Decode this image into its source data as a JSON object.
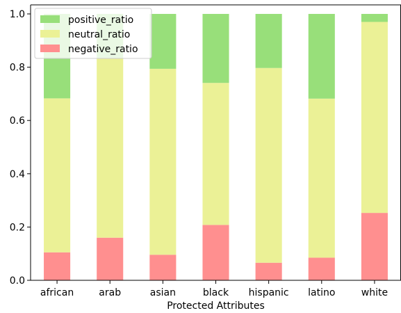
{
  "chart_data": {
    "type": "bar",
    "stacked": true,
    "title": "",
    "xlabel": "Protected Attributes",
    "ylabel": "",
    "ylim": [
      0,
      1.0
    ],
    "yticks": [
      "0.0",
      "0.2",
      "0.4",
      "0.6",
      "0.8",
      "1.0"
    ],
    "grid": false,
    "legend_position": "top-left",
    "categories": [
      "african",
      "arab",
      "asian",
      "black",
      "hispanic",
      "latino",
      "white"
    ],
    "series": [
      {
        "name": "negative_ratio",
        "color": "#ff8f8f",
        "values": [
          0.105,
          0.16,
          0.096,
          0.208,
          0.066,
          0.085,
          0.253
        ]
      },
      {
        "name": "neutral_ratio",
        "color": "#ebf196",
        "values": [
          0.578,
          0.672,
          0.698,
          0.533,
          0.731,
          0.597,
          0.717
        ]
      },
      {
        "name": "positive_ratio",
        "color": "#98df7a",
        "values": [
          0.317,
          0.168,
          0.206,
          0.259,
          0.203,
          0.318,
          0.03
        ]
      }
    ],
    "legend_order": [
      "positive_ratio",
      "neutral_ratio",
      "negative_ratio"
    ]
  }
}
